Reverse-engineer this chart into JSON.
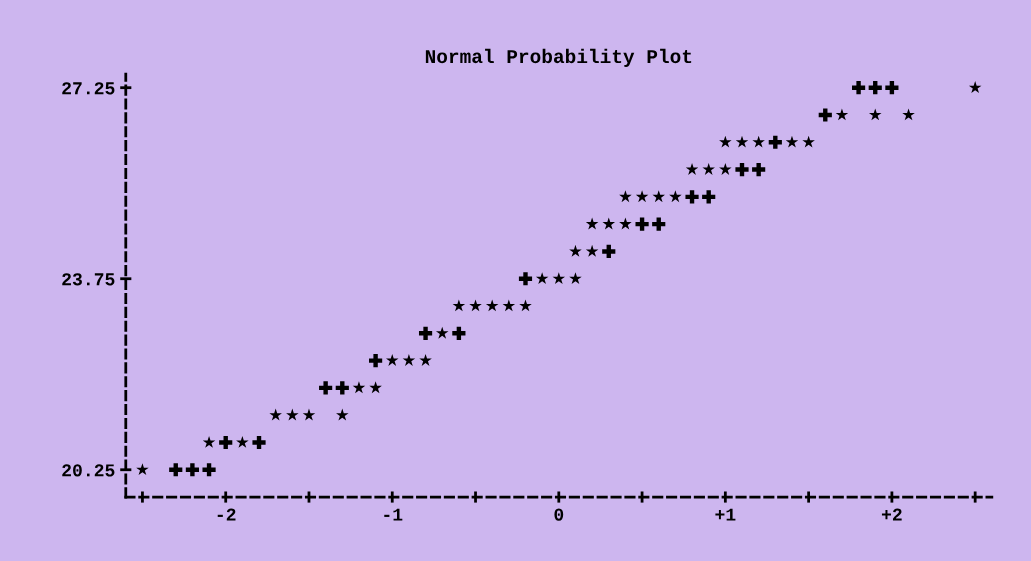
{
  "chart_data": {
    "type": "scatter",
    "title": "Normal Probability Plot",
    "series": [
      {
        "color": "#000000",
        "marker": "star",
        "x": [
          2.5,
          1.7,
          1.9,
          2.1,
          1.0,
          1.1,
          1.2,
          1.4,
          1.5,
          0.8,
          0.9,
          1.0,
          0.4,
          0.5,
          0.6,
          0.7,
          0.2,
          0.3,
          0.4,
          0.1,
          0.2,
          -0.1,
          0.0,
          0.1,
          -0.6,
          -0.5,
          -0.4,
          -0.3,
          -0.2,
          -0.7,
          -1.0,
          -0.9,
          -0.8,
          -1.2,
          -1.1,
          -1.7,
          -1.6,
          -1.5,
          -1.3,
          -2.1,
          -1.9,
          -2.5
        ],
        "values": [
          27.25,
          26.75,
          26.75,
          26.75,
          26.25,
          26.25,
          26.25,
          26.25,
          26.25,
          25.75,
          25.75,
          25.75,
          25.25,
          25.25,
          25.25,
          25.25,
          24.75,
          24.75,
          24.75,
          24.25,
          24.25,
          23.75,
          23.75,
          23.75,
          23.25,
          23.25,
          23.25,
          23.25,
          23.25,
          22.75,
          22.25,
          22.25,
          22.25,
          21.75,
          21.75,
          21.25,
          21.25,
          21.25,
          21.25,
          20.75,
          20.75,
          20.25
        ]
      },
      {
        "color": "#000000",
        "marker": "cross",
        "x": [
          1.8,
          1.9,
          2.0,
          1.6,
          1.3,
          1.1,
          1.2,
          0.8,
          0.9,
          0.5,
          0.6,
          0.3,
          -0.2,
          -0.8,
          -0.6,
          -1.1,
          -1.4,
          -1.3,
          -2.0,
          -1.8,
          -2.3,
          -2.2,
          -2.1
        ],
        "values": [
          27.25,
          27.25,
          27.25,
          26.75,
          26.25,
          25.75,
          25.75,
          25.25,
          25.25,
          24.75,
          24.75,
          24.25,
          23.75,
          22.75,
          22.75,
          22.25,
          21.75,
          21.75,
          20.75,
          20.75,
          20.25,
          20.25,
          20.25
        ]
      }
    ],
    "xlim": [
      -2.6,
      2.6
    ],
    "xticks": [
      {
        "value": -2.5,
        "label": null
      },
      {
        "value": -2,
        "label": "-2"
      },
      {
        "value": -1.5,
        "label": null
      },
      {
        "value": -1,
        "label": "-1"
      },
      {
        "value": -0.5,
        "label": null
      },
      0,
      {
        "value": 0.5,
        "label": null
      },
      {
        "value": 1,
        "label": "+1"
      },
      {
        "value": 1.5,
        "label": null
      },
      {
        "value": 2,
        "label": "+2"
      },
      {
        "value": 2.5,
        "label": null
      }
    ],
    "ylim": [
      19.75,
      27.5
    ],
    "yticks": [
      20.25,
      23.75,
      27.25
    ],
    "grid": false,
    "legend": false
  }
}
